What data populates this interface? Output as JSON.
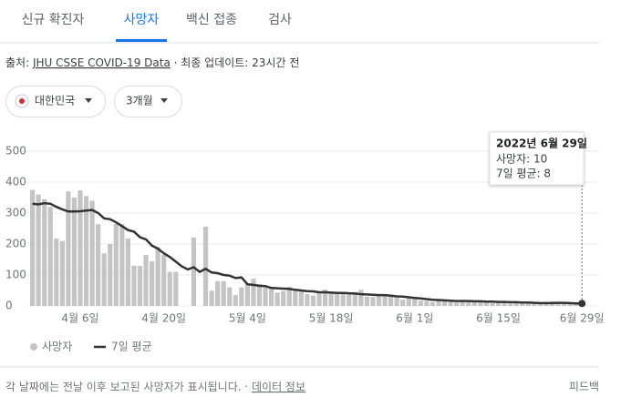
{
  "tabs": [
    "신규 확진자",
    "사망자",
    "백신 접종",
    "검사"
  ],
  "source": {
    "prefix": "출처:",
    "link": "JHU CSSE COVID-19 Data",
    "updated": "· 최종 업데이트: 23시간 전"
  },
  "filters": [
    "대한민국",
    "3개월"
  ],
  "chart_data": {
    "type": "bar_line",
    "categories": [
      null,
      null,
      null,
      null,
      null,
      null,
      null,
      null,
      "4월 6일",
      null,
      null,
      null,
      null,
      null,
      null,
      null,
      null,
      null,
      null,
      null,
      null,
      null,
      "4월 20일",
      null,
      null,
      null,
      null,
      null,
      null,
      null,
      null,
      null,
      null,
      null,
      null,
      null,
      "5월 4일",
      null,
      null,
      null,
      null,
      null,
      null,
      null,
      null,
      null,
      null,
      null,
      null,
      null,
      "5월 18일",
      null,
      null,
      null,
      null,
      null,
      null,
      null,
      null,
      null,
      null,
      null,
      null,
      null,
      "6월 1일",
      null,
      null,
      null,
      null,
      null,
      null,
      null,
      null,
      null,
      null,
      null,
      null,
      null,
      "6월 15일",
      null,
      null,
      null,
      null,
      null,
      null,
      null,
      null,
      null,
      null,
      null,
      null,
      null,
      "6월 29일"
    ],
    "series": [
      {
        "name": "사망자",
        "color": "#c4c4c4",
        "kind": "bar",
        "values": [
          375,
          360,
          345,
          320,
          218,
          210,
          370,
          350,
          373,
          355,
          340,
          264,
          170,
          200,
          265,
          264,
          218,
          130,
          129,
          165,
          144,
          190,
          165,
          110,
          110,
          0,
          0,
          221,
          0,
          256,
          49,
          80,
          80,
          60,
          35,
          60,
          72,
          88,
          70,
          60,
          58,
          43,
          48,
          61,
          56,
          51,
          38,
          34,
          42,
          53,
          47,
          46,
          40,
          38,
          45,
          52,
          30,
          29,
          33,
          36,
          35,
          27,
          20,
          24,
          24,
          17,
          16,
          12,
          21,
          15,
          13,
          11,
          20,
          17,
          16,
          14,
          13,
          9,
          12,
          11,
          8,
          13,
          10,
          7,
          9,
          6,
          7,
          15,
          14,
          11,
          8,
          5,
          10
        ]
      },
      {
        "name": "7일 평균",
        "color": "#333333",
        "kind": "line",
        "values": [
          330,
          328,
          332,
          330,
          320,
          312,
          305,
          305,
          306,
          308,
          310,
          300,
          283,
          280,
          270,
          258,
          245,
          240,
          222,
          215,
          195,
          185,
          170,
          158,
          143,
          128,
          118,
          125,
          110,
          120,
          108,
          106,
          100,
          98,
          90,
          92,
          70,
          68,
          65,
          64,
          58,
          57,
          56,
          55,
          52,
          50,
          48,
          47,
          44,
          44,
          43,
          42,
          42,
          41,
          40,
          38,
          37,
          36,
          35,
          35,
          33,
          31,
          30,
          28,
          26,
          24,
          22,
          20,
          19,
          18,
          17,
          16,
          16,
          16,
          15,
          15,
          14,
          14,
          13,
          13,
          12,
          12,
          11,
          11,
          10,
          9,
          9,
          9,
          10,
          10,
          9,
          8,
          8
        ]
      }
    ],
    "ylim": [
      0,
      500
    ],
    "yticks": [
      0,
      100,
      200,
      300,
      400,
      500
    ],
    "grid": true,
    "tooltip": {
      "title": "2022년 6월 29일",
      "lines": [
        "사망자: 10",
        "7일 평균: 8"
      ]
    }
  },
  "footer": {
    "note": "각 날짜에는 전날 이후 보고된 사망자가 표시됩니다.",
    "link": "데이터 정보",
    "feedback": "피드백"
  }
}
